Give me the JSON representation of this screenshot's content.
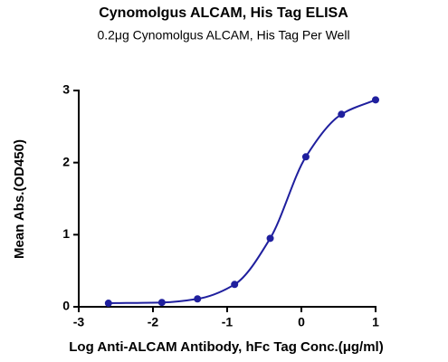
{
  "chart_data": {
    "type": "scatter",
    "title": "Cynomolgus ALCAM, His Tag ELISA",
    "subtitle": "0.2μg Cynomolgus ALCAM, His Tag Per Well",
    "x_label": "Log Anti-ALCAM Antibody, hFc Tag Conc.(μg/ml)",
    "y_label": "Mean Abs.(OD450)",
    "x": [
      -2.6,
      -1.88,
      -1.4,
      -0.9,
      -0.42,
      0.06,
      0.54,
      1.0
    ],
    "values": [
      0.05,
      0.06,
      0.11,
      0.31,
      0.95,
      2.08,
      2.67,
      2.87
    ],
    "color": "#1f1f9e",
    "fit_line": true,
    "xlim": [
      -3,
      1
    ],
    "xticks": [
      -3,
      -2,
      -1,
      0,
      1
    ],
    "ylim": [
      0,
      3
    ],
    "yticks": [
      0,
      1,
      2,
      3
    ]
  }
}
